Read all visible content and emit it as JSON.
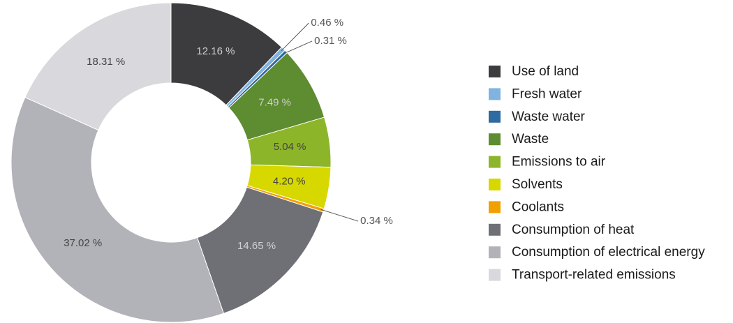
{
  "chart_data": {
    "type": "donut",
    "categories": [
      "Use of land",
      "Fresh water",
      "Waste water",
      "Waste",
      "Emissions to air",
      "Solvents",
      "Coolants",
      "Consumption of heat",
      "Consumption of electrical energy",
      "Transport-related emissions"
    ],
    "values": [
      12.16,
      0.46,
      0.31,
      7.49,
      5.04,
      4.2,
      0.34,
      14.65,
      37.02,
      18.31
    ],
    "value_labels": [
      "12.16 %",
      "0.46 %",
      "0.31 %",
      "7.49 %",
      "5.04 %",
      "4.20 %",
      "0.34 %",
      "14.65 %",
      "37.02 %",
      "18.31 %"
    ],
    "colors": [
      "#3c3c3f",
      "#80b3e0",
      "#2f6aa0",
      "#5e8c31",
      "#8db52a",
      "#d7d800",
      "#f0a000",
      "#6f6f76",
      "#b2b2b9",
      "#d9d9dd"
    ],
    "legend": "right"
  }
}
